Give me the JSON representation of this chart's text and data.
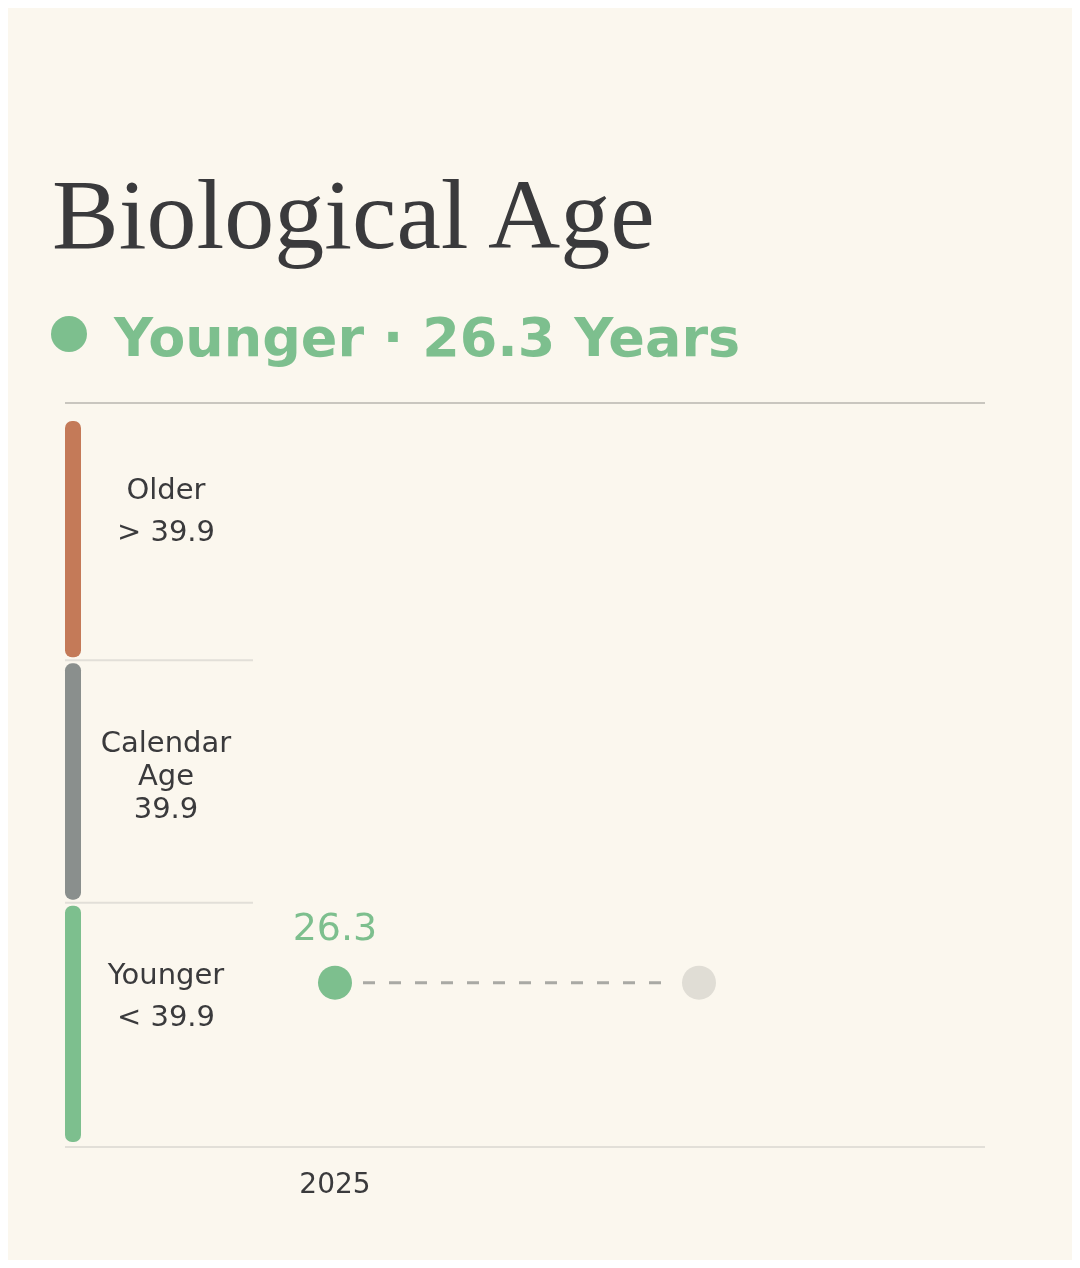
{
  "chart_data": {
    "type": "other",
    "title": "Biological Age",
    "subtitle": "Younger · 26.3 Years",
    "categories": [
      "2025"
    ],
    "series": [
      {
        "color": "#7dbf8e",
        "values": [
          26.3
        ]
      }
    ],
    "data_labels": true,
    "bands": [
      {
        "axis": "y",
        "label": "Older\n> 39.9",
        "color": "#c47a58"
      },
      {
        "axis": "y",
        "label": "Calendar\nAge\n39.9",
        "color": "#8a8f8d"
      },
      {
        "axis": "y",
        "label": "Younger\n< 39.9",
        "color": "#7dbf8e"
      }
    ]
  }
}
